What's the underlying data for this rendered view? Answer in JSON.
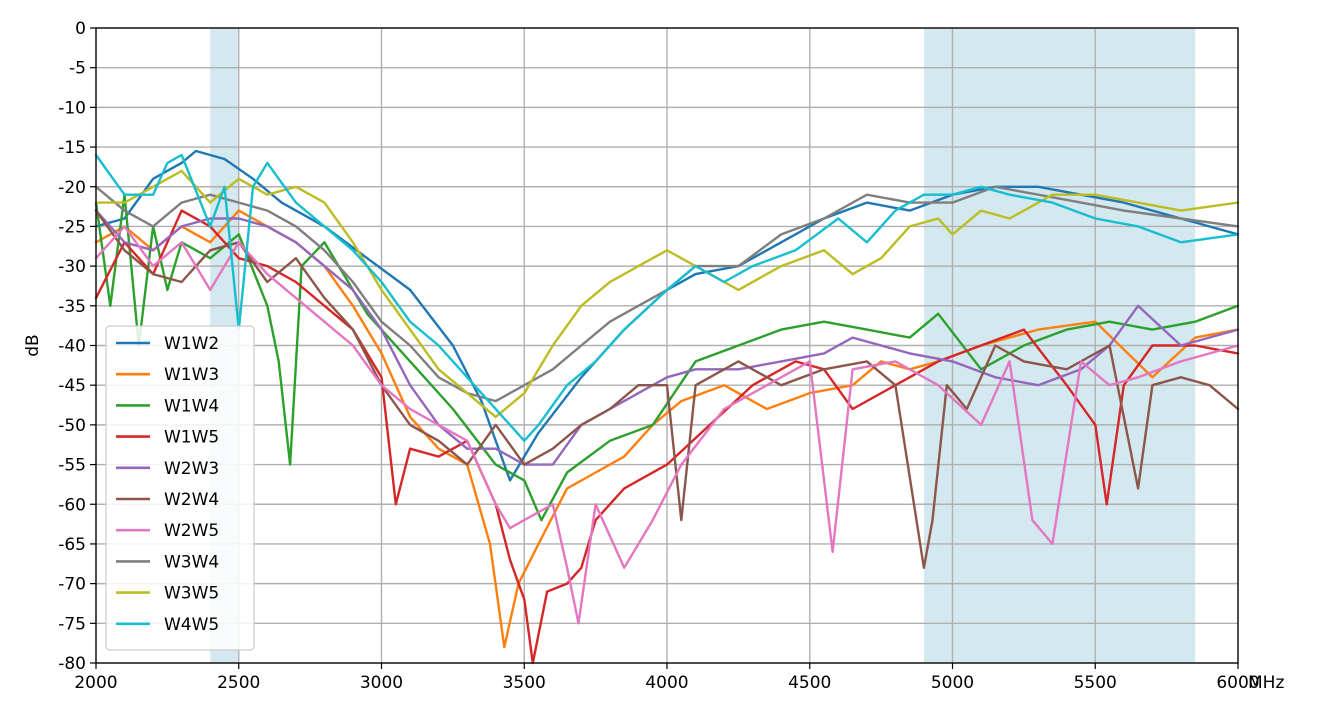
{
  "chart_data": {
    "type": "line",
    "title": "",
    "xlabel": "MHz",
    "ylabel": "dB",
    "xlim": [
      2000,
      6000
    ],
    "ylim": [
      -80,
      0
    ],
    "xticks": [
      2000,
      2500,
      3000,
      3500,
      4000,
      4500,
      5000,
      5500,
      6000
    ],
    "yticks": [
      0,
      -5,
      -10,
      -15,
      -20,
      -25,
      -30,
      -35,
      -40,
      -45,
      -50,
      -55,
      -60,
      -65,
      -70,
      -75,
      -80
    ],
    "grid": true,
    "legend_position": "lower-left",
    "highlight_bands": [
      {
        "from": 2400,
        "to": 2500,
        "color": "#d4e8f0"
      },
      {
        "from": 4900,
        "to": 5850,
        "color": "#d4e8f0"
      }
    ],
    "series": [
      {
        "name": "W1W2",
        "color": "#1f77b4",
        "x": [
          2000,
          2100,
          2200,
          2300,
          2350,
          2450,
          2550,
          2650,
          2800,
          2950,
          3100,
          3250,
          3350,
          3450,
          3550,
          3700,
          3850,
          4000,
          4100,
          4250,
          4400,
          4550,
          4700,
          4850,
          5000,
          5150,
          5300,
          5450,
          5600,
          5800,
          6000
        ],
        "y": [
          -25,
          -24,
          -19,
          -17,
          -15.5,
          -16.5,
          -19,
          -22,
          -25,
          -29,
          -33,
          -40,
          -47,
          -57,
          -51,
          -44,
          -38,
          -33,
          -31,
          -30,
          -27,
          -24,
          -22,
          -23,
          -21,
          -20,
          -20,
          -21,
          -22,
          -24,
          -26
        ]
      },
      {
        "name": "W1W3",
        "color": "#ff7f0e",
        "x": [
          2000,
          2100,
          2200,
          2300,
          2400,
          2500,
          2600,
          2700,
          2800,
          2900,
          3000,
          3100,
          3200,
          3300,
          3380,
          3430,
          3480,
          3550,
          3650,
          3750,
          3850,
          3950,
          4050,
          4200,
          4350,
          4500,
          4650,
          4750,
          4850,
          4950,
          5100,
          5300,
          5500,
          5700,
          5850,
          6000
        ],
        "y": [
          -27,
          -25,
          -28,
          -25,
          -27,
          -23,
          -25,
          -27,
          -30,
          -35,
          -41,
          -49,
          -53,
          -55,
          -65,
          -78,
          -70,
          -65,
          -58,
          -56,
          -54,
          -50,
          -47,
          -45,
          -48,
          -46,
          -45,
          -42,
          -43,
          -42,
          -40,
          -38,
          -37,
          -44,
          -39,
          -38
        ]
      },
      {
        "name": "W1W4",
        "color": "#2ca02c",
        "x": [
          2000,
          2050,
          2100,
          2150,
          2200,
          2250,
          2300,
          2400,
          2500,
          2600,
          2640,
          2680,
          2720,
          2800,
          2950,
          3100,
          3250,
          3400,
          3500,
          3560,
          3650,
          3800,
          3950,
          4100,
          4250,
          4400,
          4550,
          4700,
          4850,
          4950,
          5100,
          5250,
          5400,
          5550,
          5700,
          5850,
          6000
        ],
        "y": [
          -22,
          -35,
          -21,
          -40,
          -25,
          -33,
          -27,
          -29,
          -26,
          -35,
          -42,
          -55,
          -30,
          -27,
          -36,
          -42,
          -48,
          -55,
          -57,
          -62,
          -56,
          -52,
          -50,
          -42,
          -40,
          -38,
          -37,
          -38,
          -39,
          -36,
          -43,
          -40,
          -38,
          -37,
          -38,
          -37,
          -35
        ]
      },
      {
        "name": "W1W5",
        "color": "#d62728",
        "x": [
          2000,
          2100,
          2200,
          2300,
          2400,
          2500,
          2600,
          2700,
          2800,
          2900,
          3000,
          3050,
          3100,
          3200,
          3300,
          3400,
          3450,
          3500,
          3530,
          3580,
          3650,
          3700,
          3750,
          3850,
          4000,
          4150,
          4300,
          4450,
          4550,
          4650,
          4800,
          4950,
          5100,
          5250,
          5400,
          5500,
          5540,
          5600,
          5700,
          5850,
          6000
        ],
        "y": [
          -34,
          -27,
          -31,
          -23,
          -25,
          -29,
          -30,
          -32,
          -35,
          -38,
          -44,
          -60,
          -53,
          -54,
          -52,
          -60,
          -67,
          -72,
          -80,
          -71,
          -70,
          -68,
          -62,
          -58,
          -55,
          -50,
          -45,
          -42,
          -43,
          -48,
          -45,
          -42,
          -40,
          -38,
          -45,
          -50,
          -60,
          -45,
          -40,
          -40,
          -41
        ]
      },
      {
        "name": "W2W3",
        "color": "#9467bd",
        "x": [
          2000,
          2100,
          2200,
          2300,
          2400,
          2500,
          2600,
          2700,
          2800,
          2900,
          3000,
          3100,
          3200,
          3300,
          3400,
          3500,
          3600,
          3700,
          3800,
          3900,
          4000,
          4100,
          4250,
          4400,
          4550,
          4650,
          4750,
          4850,
          5000,
          5150,
          5300,
          5450,
          5550,
          5650,
          5800,
          6000
        ],
        "y": [
          -23,
          -27,
          -28,
          -25,
          -24,
          -24,
          -25,
          -27,
          -30,
          -33,
          -38,
          -45,
          -50,
          -53,
          -53,
          -55,
          -55,
          -50,
          -48,
          -46,
          -44,
          -43,
          -43,
          -42,
          -41,
          -39,
          -40,
          -41,
          -42,
          -44,
          -45,
          -43,
          -40,
          -35,
          -40,
          -38
        ]
      },
      {
        "name": "W2W4",
        "color": "#8c564b",
        "x": [
          2000,
          2100,
          2200,
          2300,
          2400,
          2500,
          2600,
          2700,
          2800,
          2900,
          3000,
          3100,
          3200,
          3300,
          3400,
          3500,
          3600,
          3700,
          3800,
          3900,
          4000,
          4050,
          4100,
          4250,
          4400,
          4550,
          4700,
          4800,
          4900,
          4930,
          4980,
          5050,
          5150,
          5250,
          5400,
          5550,
          5650,
          5700,
          5800,
          5900,
          6000
        ],
        "y": [
          -23,
          -28,
          -31,
          -32,
          -28,
          -27,
          -32,
          -29,
          -34,
          -38,
          -45,
          -50,
          -52,
          -55,
          -50,
          -55,
          -53,
          -50,
          -48,
          -45,
          -45,
          -62,
          -45,
          -42,
          -45,
          -43,
          -42,
          -45,
          -68,
          -62,
          -45,
          -48,
          -40,
          -42,
          -43,
          -40,
          -58,
          -45,
          -44,
          -45,
          -48
        ]
      },
      {
        "name": "W2W5",
        "color": "#e377c2",
        "x": [
          2000,
          2100,
          2200,
          2300,
          2400,
          2500,
          2600,
          2700,
          2800,
          2900,
          3000,
          3100,
          3200,
          3300,
          3400,
          3450,
          3500,
          3550,
          3600,
          3650,
          3690,
          3750,
          3850,
          3950,
          4050,
          4200,
          4350,
          4500,
          4580,
          4650,
          4800,
          4950,
          5100,
          5200,
          5280,
          5350,
          5450,
          5550,
          5650,
          5800,
          6000
        ],
        "y": [
          -29,
          -25,
          -30,
          -27,
          -33,
          -27,
          -31,
          -34,
          -37,
          -40,
          -45,
          -48,
          -50,
          -52,
          -60,
          -63,
          -62,
          -61,
          -60,
          -68,
          -75,
          -60,
          -68,
          -62,
          -55,
          -48,
          -45,
          -42,
          -66,
          -43,
          -42,
          -45,
          -50,
          -42,
          -62,
          -65,
          -42,
          -45,
          -44,
          -42,
          -40
        ]
      },
      {
        "name": "W3W4",
        "color": "#7f7f7f",
        "x": [
          2000,
          2100,
          2200,
          2300,
          2400,
          2500,
          2600,
          2700,
          2800,
          2900,
          3000,
          3100,
          3200,
          3300,
          3400,
          3500,
          3600,
          3700,
          3800,
          3900,
          4000,
          4100,
          4250,
          4400,
          4550,
          4700,
          4850,
          5000,
          5150,
          5300,
          5450,
          5600,
          5800,
          6000
        ],
        "y": [
          -20,
          -23,
          -25,
          -22,
          -21,
          -22,
          -23,
          -25,
          -28,
          -32,
          -37,
          -40,
          -44,
          -46,
          -47,
          -45,
          -43,
          -40,
          -37,
          -35,
          -33,
          -30,
          -30,
          -26,
          -24,
          -21,
          -22,
          -22,
          -20,
          -21,
          -22,
          -23,
          -24,
          -25
        ]
      },
      {
        "name": "W3W5",
        "color": "#bcbd22",
        "x": [
          2000,
          2100,
          2200,
          2300,
          2400,
          2500,
          2600,
          2700,
          2800,
          2900,
          3000,
          3100,
          3200,
          3300,
          3400,
          3500,
          3600,
          3700,
          3800,
          3900,
          4000,
          4100,
          4250,
          4400,
          4550,
          4650,
          4750,
          4850,
          4950,
          5000,
          5100,
          5200,
          5350,
          5500,
          5650,
          5800,
          6000
        ],
        "y": [
          -22,
          -22,
          -20,
          -18,
          -22,
          -19,
          -21,
          -20,
          -22,
          -27,
          -33,
          -38,
          -43,
          -46,
          -49,
          -46,
          -40,
          -35,
          -32,
          -30,
          -28,
          -30,
          -33,
          -30,
          -28,
          -31,
          -29,
          -25,
          -24,
          -26,
          -23,
          -24,
          -21,
          -21,
          -22,
          -23,
          -22
        ]
      },
      {
        "name": "W4W5",
        "color": "#17becf",
        "x": [
          2000,
          2100,
          2200,
          2250,
          2300,
          2400,
          2450,
          2500,
          2550,
          2600,
          2700,
          2800,
          2900,
          3000,
          3100,
          3200,
          3300,
          3400,
          3500,
          3550,
          3650,
          3750,
          3850,
          4000,
          4100,
          4200,
          4300,
          4450,
          4600,
          4700,
          4800,
          4900,
          5000,
          5100,
          5200,
          5350,
          5500,
          5650,
          5800,
          6000
        ],
        "y": [
          -16,
          -21,
          -21,
          -17,
          -16,
          -25,
          -20,
          -38,
          -20,
          -17,
          -22,
          -25,
          -28,
          -32,
          -37,
          -40,
          -44,
          -48,
          -52,
          -50,
          -45,
          -42,
          -38,
          -33,
          -30,
          -32,
          -30,
          -28,
          -24,
          -27,
          -23,
          -21,
          -21,
          -20,
          -21,
          -22,
          -24,
          -25,
          -27,
          -26
        ]
      }
    ]
  }
}
